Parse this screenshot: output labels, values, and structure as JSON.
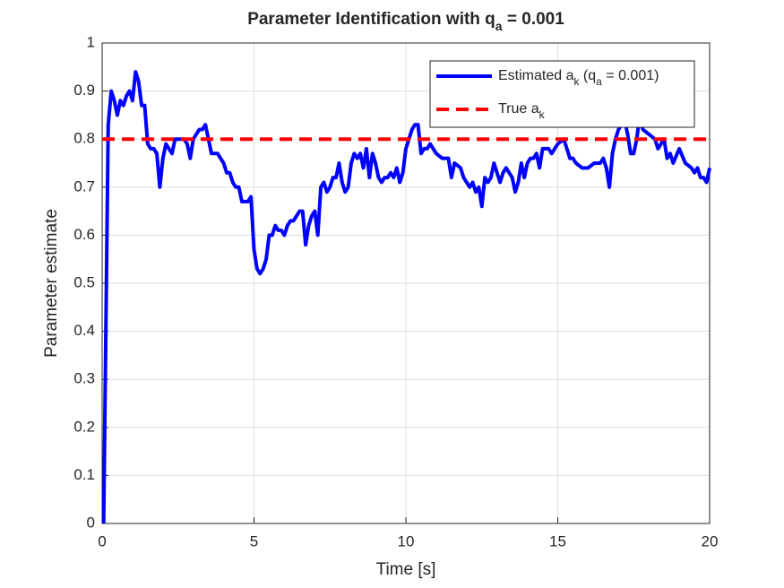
{
  "chart_data": {
    "type": "line",
    "title": [
      {
        "text": "Parameter Identification with q"
      },
      {
        "text": "a",
        "sub": true
      },
      {
        "text": " = 0.001"
      }
    ],
    "x_label": "Time [s]",
    "y_label": "Parameter estimate",
    "xlim": [
      0,
      20
    ],
    "ylim": [
      0,
      1
    ],
    "xticks": [
      0,
      5,
      10,
      15,
      20
    ],
    "yticks": [
      0,
      0.1,
      0.2,
      0.3,
      0.4,
      0.5,
      0.6,
      0.7,
      0.8,
      0.9,
      1
    ],
    "grid": true,
    "legend": "northeast",
    "series": [
      {
        "name": [
          {
            "text": "Estimated a"
          },
          {
            "text": "k",
            "sub": true
          },
          {
            "text": " (q"
          },
          {
            "text": "a",
            "sub": true
          },
          {
            "text": " = 0.001)"
          }
        ],
        "color": "#0000ff",
        "style": "solid",
        "x": [
          0.05,
          0.2,
          0.3,
          0.4,
          0.5,
          0.6,
          0.7,
          0.8,
          0.9,
          1.0,
          1.1,
          1.2,
          1.3,
          1.4,
          1.5,
          1.6,
          1.7,
          1.8,
          1.9,
          2.0,
          2.1,
          2.2,
          2.3,
          2.4,
          2.5,
          2.6,
          2.7,
          2.8,
          2.9,
          3.0,
          3.1,
          3.2,
          3.3,
          3.4,
          3.5,
          3.6,
          3.7,
          3.8,
          3.9,
          4.0,
          4.1,
          4.2,
          4.3,
          4.4,
          4.5,
          4.6,
          4.7,
          4.8,
          4.9,
          5.0,
          5.1,
          5.2,
          5.3,
          5.4,
          5.5,
          5.6,
          5.7,
          5.8,
          5.9,
          6.0,
          6.1,
          6.2,
          6.3,
          6.4,
          6.5,
          6.6,
          6.7,
          6.8,
          6.9,
          7.0,
          7.1,
          7.2,
          7.3,
          7.4,
          7.5,
          7.6,
          7.7,
          7.8,
          7.9,
          8.0,
          8.1,
          8.2,
          8.3,
          8.4,
          8.5,
          8.6,
          8.7,
          8.8,
          8.9,
          9.0,
          9.1,
          9.2,
          9.3,
          9.4,
          9.5,
          9.6,
          9.7,
          9.8,
          9.9,
          10.0,
          10.1,
          10.2,
          10.3,
          10.4,
          10.5,
          10.6,
          10.7,
          10.8,
          10.9,
          11.0,
          11.2,
          11.4,
          11.5,
          11.6,
          11.8,
          11.9,
          12.0,
          12.1,
          12.2,
          12.3,
          12.4,
          12.5,
          12.6,
          12.7,
          12.8,
          12.9,
          13.0,
          13.1,
          13.2,
          13.3,
          13.4,
          13.5,
          13.6,
          13.7,
          13.8,
          13.9,
          14.0,
          14.1,
          14.2,
          14.3,
          14.4,
          14.5,
          14.7,
          14.8,
          15.0,
          15.2,
          15.3,
          15.4,
          15.5,
          15.6,
          15.8,
          16.0,
          16.2,
          16.4,
          16.5,
          16.6,
          16.7,
          16.8,
          16.9,
          17.0,
          17.2,
          17.3,
          17.4,
          17.5,
          17.6,
          17.7,
          17.8,
          18.0,
          18.2,
          18.3,
          18.4,
          18.5,
          18.6,
          18.7,
          18.8,
          19.0,
          19.2,
          19.4,
          19.5,
          19.6,
          19.7,
          19.8,
          19.9,
          20.0
        ],
        "values": [
          0,
          0.83,
          0.9,
          0.88,
          0.85,
          0.88,
          0.87,
          0.89,
          0.9,
          0.88,
          0.94,
          0.92,
          0.87,
          0.87,
          0.79,
          0.78,
          0.78,
          0.77,
          0.7,
          0.76,
          0.79,
          0.78,
          0.77,
          0.8,
          0.8,
          0.8,
          0.8,
          0.79,
          0.76,
          0.8,
          0.81,
          0.82,
          0.82,
          0.83,
          0.8,
          0.77,
          0.77,
          0.77,
          0.76,
          0.75,
          0.73,
          0.73,
          0.71,
          0.7,
          0.7,
          0.67,
          0.67,
          0.67,
          0.68,
          0.57,
          0.53,
          0.52,
          0.53,
          0.55,
          0.6,
          0.6,
          0.62,
          0.61,
          0.61,
          0.6,
          0.62,
          0.63,
          0.63,
          0.64,
          0.65,
          0.65,
          0.58,
          0.62,
          0.64,
          0.65,
          0.6,
          0.7,
          0.71,
          0.69,
          0.7,
          0.72,
          0.72,
          0.75,
          0.71,
          0.69,
          0.7,
          0.75,
          0.77,
          0.76,
          0.77,
          0.74,
          0.78,
          0.72,
          0.77,
          0.75,
          0.72,
          0.71,
          0.72,
          0.72,
          0.73,
          0.72,
          0.74,
          0.71,
          0.73,
          0.78,
          0.8,
          0.82,
          0.83,
          0.83,
          0.77,
          0.78,
          0.78,
          0.79,
          0.78,
          0.77,
          0.76,
          0.76,
          0.72,
          0.75,
          0.74,
          0.72,
          0.71,
          0.7,
          0.71,
          0.69,
          0.7,
          0.66,
          0.72,
          0.71,
          0.72,
          0.75,
          0.73,
          0.71,
          0.73,
          0.74,
          0.73,
          0.72,
          0.69,
          0.71,
          0.75,
          0.72,
          0.75,
          0.76,
          0.76,
          0.77,
          0.74,
          0.78,
          0.78,
          0.77,
          0.79,
          0.8,
          0.78,
          0.76,
          0.76,
          0.75,
          0.74,
          0.74,
          0.75,
          0.75,
          0.76,
          0.74,
          0.7,
          0.77,
          0.8,
          0.82,
          0.84,
          0.81,
          0.77,
          0.77,
          0.8,
          0.85,
          0.82,
          0.81,
          0.8,
          0.78,
          0.79,
          0.8,
          0.76,
          0.77,
          0.75,
          0.78,
          0.75,
          0.74,
          0.73,
          0.74,
          0.72,
          0.72,
          0.71,
          0.74
        ]
      },
      {
        "name": [
          {
            "text": "True a"
          },
          {
            "text": "k",
            "sub": true
          }
        ],
        "color": "#ff0000",
        "style": "dashed",
        "x": [
          0,
          20
        ],
        "values": [
          0.8,
          0.8
        ]
      }
    ]
  }
}
